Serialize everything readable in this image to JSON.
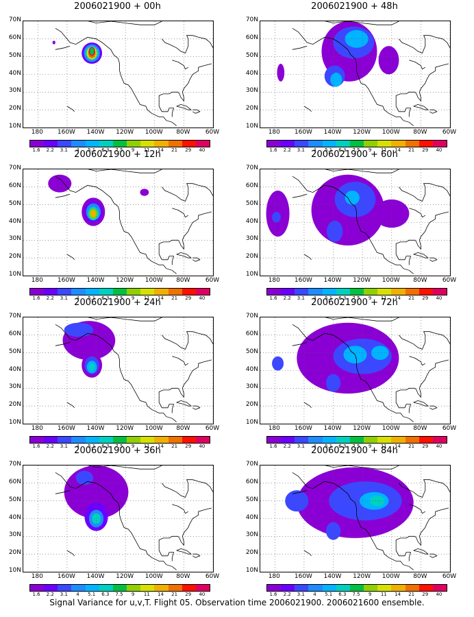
{
  "panels": [
    {
      "title": "2006021900 + 00h",
      "blobs": [
        {
          "cx": -143,
          "cy": 52,
          "rx": 7,
          "ry": 6,
          "lv": 1
        },
        {
          "cx": -143,
          "cy": 52,
          "rx": 5.5,
          "ry": 5,
          "lv": 3
        },
        {
          "cx": -143,
          "cy": 52,
          "rx": 4.5,
          "ry": 4,
          "lv": 5
        },
        {
          "cx": -143,
          "cy": 52,
          "rx": 3.5,
          "ry": 3.5,
          "lv": 8
        },
        {
          "cx": -143,
          "cy": 52,
          "rx": 2.5,
          "ry": 2.8,
          "lv": 10
        },
        {
          "cx": -143,
          "cy": 53,
          "rx": 2.2,
          "ry": 2.5,
          "lv": 12
        },
        {
          "cx": -143,
          "cy": 53,
          "rx": 1.5,
          "ry": 2,
          "lv": 6
        },
        {
          "cx": -169,
          "cy": 58,
          "rx": 1,
          "ry": 1,
          "lv": 0
        }
      ]
    },
    {
      "title": "2006021900 + 48h",
      "blobs": [
        {
          "cx": -129,
          "cy": 53,
          "rx": 19,
          "ry": 17,
          "lv": 0
        },
        {
          "cx": -126,
          "cy": 58,
          "rx": 14,
          "ry": 9,
          "lv": 2
        },
        {
          "cx": -139,
          "cy": 39,
          "rx": 7,
          "ry": 6,
          "lv": 2
        },
        {
          "cx": -124,
          "cy": 60,
          "rx": 8,
          "ry": 5,
          "lv": 4
        },
        {
          "cx": -138,
          "cy": 37,
          "rx": 4,
          "ry": 4,
          "lv": 4
        },
        {
          "cx": -176,
          "cy": 41,
          "rx": 2.5,
          "ry": 5,
          "lv": 0
        },
        {
          "cx": -102,
          "cy": 48,
          "rx": 7,
          "ry": 8,
          "lv": 0
        }
      ]
    },
    {
      "title": "2006021900 + 12h",
      "blobs": [
        {
          "cx": -165,
          "cy": 62,
          "rx": 8,
          "ry": 5,
          "lv": 0
        },
        {
          "cx": -142,
          "cy": 46,
          "rx": 8,
          "ry": 8,
          "lv": 0
        },
        {
          "cx": -142,
          "cy": 46,
          "rx": 6,
          "ry": 6,
          "lv": 1
        },
        {
          "cx": -142,
          "cy": 46,
          "rx": 5,
          "ry": 4.8,
          "lv": 3
        },
        {
          "cx": -142,
          "cy": 45,
          "rx": 3.8,
          "ry": 3.8,
          "lv": 5
        },
        {
          "cx": -142,
          "cy": 45,
          "rx": 2.8,
          "ry": 2.8,
          "lv": 7
        },
        {
          "cx": -142,
          "cy": 45,
          "rx": 1.8,
          "ry": 1.8,
          "lv": 9
        },
        {
          "cx": -107,
          "cy": 57,
          "rx": 3,
          "ry": 2,
          "lv": 0
        }
      ]
    },
    {
      "title": "2006021900 + 60h",
      "blobs": [
        {
          "cx": -130,
          "cy": 47,
          "rx": 25,
          "ry": 20,
          "lv": 0
        },
        {
          "cx": -178,
          "cy": 45,
          "rx": 8,
          "ry": 13,
          "lv": 0
        },
        {
          "cx": -125,
          "cy": 53,
          "rx": 14,
          "ry": 10,
          "lv": 2
        },
        {
          "cx": -139,
          "cy": 35,
          "rx": 5.5,
          "ry": 6,
          "lv": 2
        },
        {
          "cx": -127,
          "cy": 54,
          "rx": 5,
          "ry": 4,
          "lv": 4
        },
        {
          "cx": -179,
          "cy": 43,
          "rx": 3,
          "ry": 3,
          "lv": 2
        },
        {
          "cx": -100,
          "cy": 45,
          "rx": 12,
          "ry": 8,
          "lv": 0
        }
      ]
    },
    {
      "title": "2006021900 + 24h",
      "blobs": [
        {
          "cx": -145,
          "cy": 57,
          "rx": 18,
          "ry": 11,
          "lv": 0
        },
        {
          "cx": -143,
          "cy": 43,
          "rx": 7,
          "ry": 7,
          "lv": 0
        },
        {
          "cx": -152,
          "cy": 63,
          "rx": 10,
          "ry": 4,
          "lv": 2
        },
        {
          "cx": -143,
          "cy": 43,
          "rx": 5,
          "ry": 5,
          "lv": 2
        },
        {
          "cx": -143,
          "cy": 42,
          "rx": 3.5,
          "ry": 3.5,
          "lv": 4
        },
        {
          "cx": -143,
          "cy": 42,
          "rx": 2,
          "ry": 2,
          "lv": 5
        }
      ]
    },
    {
      "title": "2006021900 + 72h",
      "blobs": [
        {
          "cx": -130,
          "cy": 47,
          "rx": 35,
          "ry": 20,
          "lv": 0
        },
        {
          "cx": -120,
          "cy": 48,
          "rx": 20,
          "ry": 10,
          "lv": 2
        },
        {
          "cx": -140,
          "cy": 33,
          "rx": 5,
          "ry": 5,
          "lv": 2
        },
        {
          "cx": -178,
          "cy": 44,
          "rx": 4,
          "ry": 4,
          "lv": 2
        },
        {
          "cx": -125,
          "cy": 49,
          "rx": 8,
          "ry": 5,
          "lv": 4
        },
        {
          "cx": -108,
          "cy": 50,
          "rx": 6,
          "ry": 4,
          "lv": 4
        }
      ]
    },
    {
      "title": "2006021900 + 36h",
      "blobs": [
        {
          "cx": -140,
          "cy": 55,
          "rx": 22,
          "ry": 15,
          "lv": 0
        },
        {
          "cx": -140,
          "cy": 41,
          "rx": 8,
          "ry": 8,
          "lv": 1
        },
        {
          "cx": -148,
          "cy": 63,
          "rx": 6,
          "ry": 4,
          "lv": 2
        },
        {
          "cx": -140,
          "cy": 40,
          "rx": 5,
          "ry": 5,
          "lv": 3
        },
        {
          "cx": -140,
          "cy": 40,
          "rx": 3,
          "ry": 3,
          "lv": 5
        }
      ]
    },
    {
      "title": "2006021900 + 84h",
      "blobs": [
        {
          "cx": -125,
          "cy": 49,
          "rx": 40,
          "ry": 20,
          "lv": 0
        },
        {
          "cx": -118,
          "cy": 50,
          "rx": 25,
          "ry": 11,
          "lv": 2
        },
        {
          "cx": -140,
          "cy": 33,
          "rx": 5,
          "ry": 5,
          "lv": 2
        },
        {
          "cx": -165,
          "cy": 50,
          "rx": 8,
          "ry": 6,
          "lv": 2
        },
        {
          "cx": -112,
          "cy": 50,
          "rx": 10,
          "ry": 5,
          "lv": 4
        },
        {
          "cx": -110,
          "cy": 50,
          "rx": 5,
          "ry": 3,
          "lv": 5
        }
      ]
    }
  ],
  "y_ticks": [
    "70N",
    "60N",
    "50N",
    "40N",
    "30N",
    "20N",
    "10N"
  ],
  "x_ticks": [
    "180",
    "160W",
    "140W",
    "120W",
    "100W",
    "80W",
    "60W"
  ],
  "colorbar_labels": [
    "1.6",
    "2.2",
    "3.1",
    "4",
    "5.1",
    "6.3",
    "7.5",
    "9",
    "11",
    "14",
    "21",
    "29",
    "40"
  ],
  "colors": [
    "#8a00d4",
    "#6a00ff",
    "#3b48ff",
    "#1e8cff",
    "#00b4ff",
    "#00d0c0",
    "#00c040",
    "#90d000",
    "#d8e000",
    "#f0b000",
    "#f07000",
    "#ff1000",
    "#e00060"
  ],
  "footer": "Signal Variance for u,v,T. Flight 05. Observation time 2006021900. 2006021600 ensemble."
}
